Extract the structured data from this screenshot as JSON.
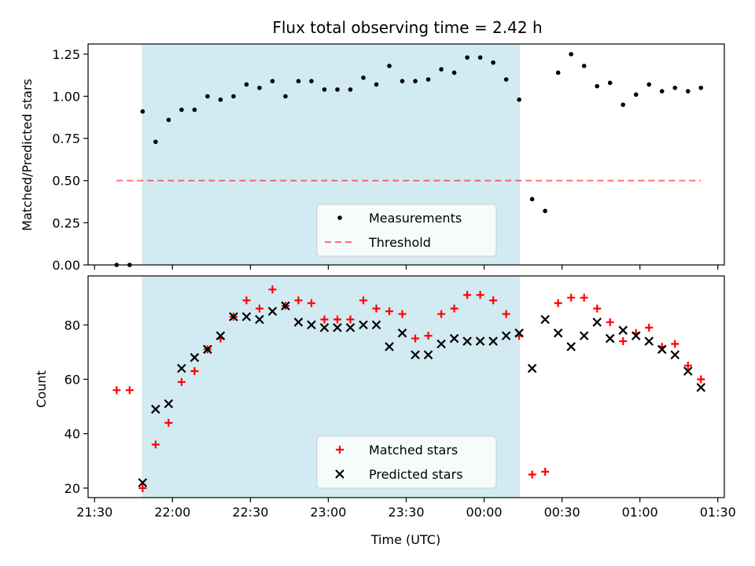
{
  "figure": {
    "title": "Flux total observing time = 2.42 h",
    "xlabel": "Time (UTC)",
    "top_ylabel": "Matched/Predicted stars",
    "bottom_ylabel": "Count"
  },
  "colors": {
    "background": "#ffffff",
    "shade": "#add8e6",
    "measurements": "#000000",
    "threshold": "#ff0000",
    "matched": "#ff0000",
    "predicted": "#000000"
  },
  "chart_data": [
    {
      "type": "scatter",
      "panel": "top",
      "title": "Flux total observing time = 2.42 h",
      "xlabel": "",
      "ylabel": "Matched/Predicted stars",
      "xlim": [
        -5,
        485
      ],
      "ylim": [
        0,
        1.31
      ],
      "x_ticks": [
        {
          "x": 0,
          "label": "21:30"
        },
        {
          "x": 60,
          "label": "22:00"
        },
        {
          "x": 120,
          "label": "22:30"
        },
        {
          "x": 180,
          "label": "23:00"
        },
        {
          "x": 240,
          "label": "23:30"
        },
        {
          "x": 300,
          "label": "00:00"
        },
        {
          "x": 360,
          "label": "00:30"
        },
        {
          "x": 420,
          "label": "01:00"
        },
        {
          "x": 480,
          "label": "01:30"
        }
      ],
      "show_x_tick_labels": false,
      "y_ticks": [
        {
          "y": 0,
          "label": "0.00"
        },
        {
          "y": 0.25,
          "label": "0.25"
        },
        {
          "y": 0.5,
          "label": "0.50"
        },
        {
          "y": 0.75,
          "label": "0.75"
        },
        {
          "y": 1.0,
          "label": "1.00"
        },
        {
          "y": 1.25,
          "label": "1.25"
        }
      ],
      "shaded_span": [
        36.5,
        327.5
      ],
      "grid": false,
      "legend_position": "bottom-center",
      "series": [
        {
          "name": "Measurements",
          "marker": "dot",
          "x": [
            17,
            27,
            37,
            47,
            57,
            67,
            77,
            87,
            97,
            107,
            117,
            127,
            137,
            147,
            157,
            167,
            177,
            187,
            197,
            207,
            217,
            227,
            237,
            247,
            257,
            267,
            277,
            287,
            297,
            307,
            317,
            327,
            337,
            347,
            357,
            367,
            377,
            387,
            397,
            407,
            417,
            427,
            437,
            447,
            457,
            467
          ],
          "y": [
            0.0,
            0.0,
            0.91,
            0.73,
            0.86,
            0.92,
            0.92,
            1.0,
            0.98,
            1.0,
            1.07,
            1.05,
            1.09,
            1.0,
            1.09,
            1.09,
            1.04,
            1.04,
            1.04,
            1.11,
            1.07,
            1.18,
            1.09,
            1.09,
            1.1,
            1.16,
            1.14,
            1.23,
            1.23,
            1.2,
            1.1,
            0.98,
            0.39,
            0.32,
            1.14,
            1.25,
            1.18,
            1.06,
            1.08,
            0.95,
            1.01,
            1.07,
            1.03,
            1.05,
            1.03,
            1.05
          ]
        },
        {
          "name": "Threshold",
          "marker": "dashed-line",
          "x": [
            17,
            467
          ],
          "y": [
            0.5,
            0.5
          ]
        }
      ]
    },
    {
      "type": "scatter",
      "panel": "bottom",
      "title": "",
      "xlabel": "Time (UTC)",
      "ylabel": "Count",
      "xlim": [
        -5,
        485
      ],
      "ylim": [
        16.5,
        98
      ],
      "x_ticks": [
        {
          "x": 0,
          "label": "21:30"
        },
        {
          "x": 60,
          "label": "22:00"
        },
        {
          "x": 120,
          "label": "22:30"
        },
        {
          "x": 180,
          "label": "23:00"
        },
        {
          "x": 240,
          "label": "23:30"
        },
        {
          "x": 300,
          "label": "00:00"
        },
        {
          "x": 360,
          "label": "00:30"
        },
        {
          "x": 420,
          "label": "01:00"
        },
        {
          "x": 480,
          "label": "01:30"
        }
      ],
      "show_x_tick_labels": true,
      "y_ticks": [
        {
          "y": 20,
          "label": "20"
        },
        {
          "y": 40,
          "label": "40"
        },
        {
          "y": 60,
          "label": "60"
        },
        {
          "y": 80,
          "label": "80"
        }
      ],
      "shaded_span": [
        36.5,
        327.5
      ],
      "grid": false,
      "legend_position": "bottom-center",
      "series": [
        {
          "name": "Matched stars",
          "marker": "plus",
          "x": [
            17,
            27,
            37,
            47,
            57,
            67,
            77,
            87,
            97,
            107,
            117,
            127,
            137,
            147,
            157,
            167,
            177,
            187,
            197,
            207,
            217,
            227,
            237,
            247,
            257,
            267,
            277,
            287,
            297,
            307,
            317,
            327,
            337,
            347,
            357,
            367,
            377,
            387,
            397,
            407,
            417,
            427,
            437,
            447,
            457,
            467
          ],
          "y": [
            56,
            56,
            20,
            36,
            44,
            59,
            63,
            71,
            75,
            83,
            89,
            86,
            93,
            87,
            89,
            88,
            82,
            82,
            82,
            89,
            86,
            85,
            84,
            75,
            76,
            84,
            86,
            91,
            91,
            89,
            84,
            76,
            25,
            26,
            88,
            90,
            90,
            86,
            81,
            74,
            77,
            79,
            72,
            73,
            65,
            60
          ]
        },
        {
          "name": "Predicted stars",
          "marker": "x",
          "x": [
            37,
            47,
            57,
            67,
            77,
            87,
            97,
            107,
            117,
            127,
            137,
            147,
            157,
            167,
            177,
            187,
            197,
            207,
            217,
            227,
            237,
            247,
            257,
            267,
            277,
            287,
            297,
            307,
            317,
            327,
            337,
            347,
            357,
            367,
            377,
            387,
            397,
            407,
            417,
            427,
            437,
            447,
            457,
            467
          ],
          "y": [
            22,
            49,
            51,
            64,
            68,
            71,
            76,
            83,
            83,
            82,
            85,
            87,
            81,
            80,
            79,
            79,
            79,
            80,
            80,
            72,
            77,
            69,
            69,
            73,
            75,
            74,
            74,
            74,
            76,
            77,
            64,
            82,
            77,
            72,
            76,
            81,
            75,
            78,
            76,
            74,
            71,
            69,
            63,
            57
          ]
        }
      ]
    }
  ]
}
